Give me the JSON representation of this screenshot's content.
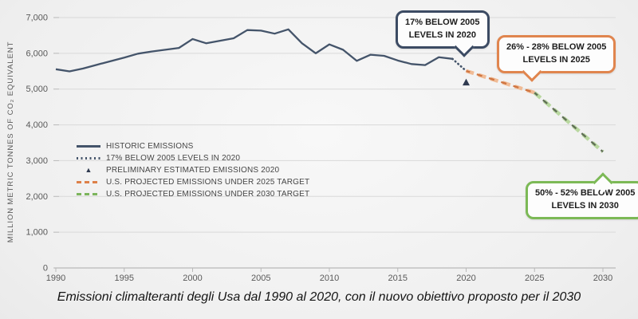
{
  "page": {
    "caption": "Emissioni climalteranti degli Usa dal 1990 al 2020, con il nuovo obiettivo proposto per il 2030"
  },
  "chart_data": {
    "type": "line",
    "title": "",
    "xlabel": "",
    "ylabel": "MILLION METRIC TONNES OF CO₂ EQUIVALENT",
    "xlim": [
      1990,
      2030
    ],
    "ylim": [
      0,
      7000
    ],
    "grid": true,
    "legend_position": "inside-left",
    "xtick_values": [
      1990,
      1995,
      2000,
      2005,
      2010,
      2015,
      2020,
      2025,
      2030
    ],
    "xtick_labels": [
      "1990",
      "1995",
      "2000",
      "2005",
      "2010",
      "2015",
      "2020",
      "2025",
      "2030"
    ],
    "ytick_values": [
      0,
      1000,
      2000,
      3000,
      4000,
      5000,
      6000,
      7000
    ],
    "ytick_labels": [
      "0",
      "1,000",
      "2,000",
      "3,000",
      "4,000",
      "5,000",
      "6,000",
      "7,000"
    ],
    "axis_color": "#b9b9b9",
    "grid_color": "#d9d9d9",
    "tick_text_color": "#595959",
    "series": [
      {
        "name": "HISTORIC EMISSIONS",
        "style": "solid",
        "color": "#44546a",
        "x": [
          1990,
          1991,
          1992,
          1993,
          1994,
          1995,
          1996,
          1997,
          1998,
          1999,
          2000,
          2001,
          2002,
          2003,
          2004,
          2005,
          2006,
          2007,
          2008,
          2009,
          2010,
          2011,
          2012,
          2013,
          2014,
          2015,
          2016,
          2017,
          2018,
          2019
        ],
        "values": [
          5555,
          5495,
          5575,
          5680,
          5780,
          5880,
          5990,
          6050,
          6100,
          6150,
          6400,
          6280,
          6350,
          6420,
          6650,
          6635,
          6550,
          6670,
          6280,
          6000,
          6250,
          6100,
          5790,
          5960,
          5930,
          5800,
          5700,
          5670,
          5890,
          5845
        ]
      },
      {
        "name": "17% BELOW 2005 LEVELS IN 2020",
        "style": "dotted",
        "color": "#44546a",
        "x": [
          2019,
          2020
        ],
        "values": [
          5845,
          5508
        ]
      },
      {
        "name": "PRELIMINARY ESTIMATED EMISSIONS 2020",
        "style": "point",
        "marker": "triangle",
        "color": "#2f3a50",
        "x": [
          2020
        ],
        "values": [
          5180
        ]
      },
      {
        "name": "U.S. PROJECTED EMISSIONS UNDER 2025 TARGET",
        "style": "dashed",
        "color": "#dd8049",
        "band_color": "#f0bb95",
        "overlay_color": "#cf7440",
        "x": [
          2020,
          2025
        ],
        "values": [
          5508,
          4900
        ]
      },
      {
        "name": "U.S. PROJECTED EMISSIONS UNDER 2030 TARGET",
        "style": "dashed",
        "color": "#7cb45c",
        "band_color": "#b9d8a0",
        "overlay_color": "#5f6e55",
        "x": [
          2025,
          2030
        ],
        "values": [
          4900,
          3250
        ]
      }
    ],
    "annotations": [
      {
        "line1": "17% BELOW 2005",
        "line2": "LEVELS IN 2020",
        "color": "#3c4b63",
        "points_to_year": 2020
      },
      {
        "line1": "26% - 28% BELOW 2005",
        "line2": "LEVELS IN 2025",
        "color": "#e0854e",
        "points_to_year": 2025
      },
      {
        "line1": "50% - 52% BELOW 2005",
        "line2": "LEVELS IN 2030",
        "color": "#7cb956",
        "points_to_year": 2030
      }
    ]
  }
}
